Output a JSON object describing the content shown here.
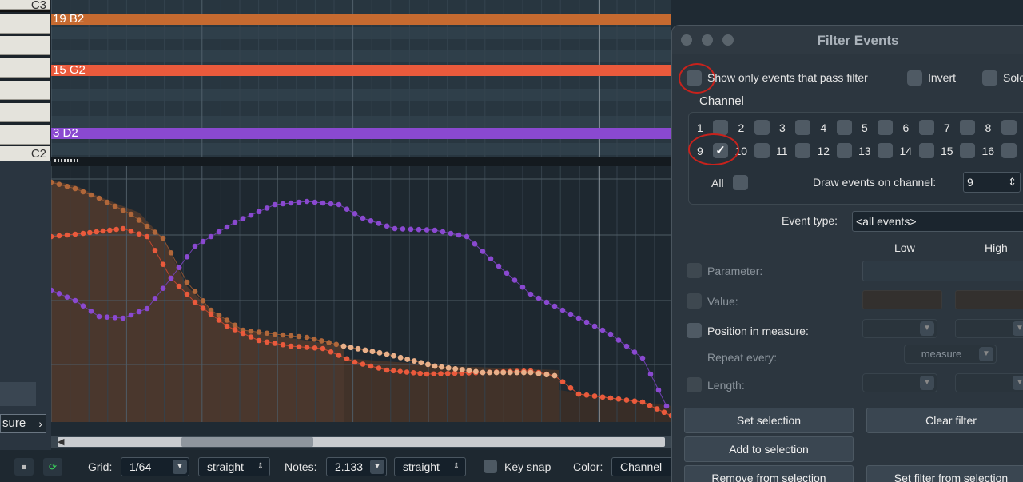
{
  "piano": {
    "top_label": "C3",
    "bottom_label": "C2"
  },
  "notes": [
    {
      "label": "19 B2",
      "color": "#c66a30"
    },
    {
      "label": "15 G2",
      "color": "#ea5a3c"
    },
    {
      "label": "3 D2",
      "color": "#8a49d0"
    }
  ],
  "left_panel": {
    "dropdown_text": "sure",
    "dropdown_arrow": "chevron-right-icon"
  },
  "toolbar": {
    "grid_label": "Grid:",
    "grid_value": "1/64",
    "grid_mode": "straight",
    "notes_label": "Notes:",
    "notes_value": "2.133",
    "notes_mode": "straight",
    "key_snap_label": "Key snap",
    "color_label": "Color:",
    "color_value": "Channel"
  },
  "dialog": {
    "title": "Filter Events",
    "show_only_label": "Show only events that pass filter",
    "invert_label": "Invert",
    "solo_label": "Solo",
    "channel_heading": "Channel",
    "channels_row1": [
      "1",
      "2",
      "3",
      "4",
      "5",
      "6",
      "7",
      "8"
    ],
    "channels_row2": [
      "9",
      "10",
      "11",
      "12",
      "13",
      "14",
      "15",
      "16"
    ],
    "checked_channel": "9",
    "all_label": "All",
    "draw_on_label": "Draw events on channel:",
    "draw_on_value": "9",
    "event_type_label": "Event type:",
    "event_type_value": "<all events>",
    "low_label": "Low",
    "high_label": "High",
    "parameter_label": "Parameter:",
    "value_label": "Value:",
    "position_label": "Position in measure:",
    "repeat_label": "Repeat every:",
    "repeat_value": "measure",
    "length_label": "Length:",
    "buttons": {
      "set_selection": "Set selection",
      "clear_filter": "Clear filter",
      "add_to_selection": "Add to selection",
      "remove_from_selection": "Remove from selection",
      "set_filter_from_selection": "Set filter from selection"
    }
  },
  "colors": {
    "accent_red": "#c8221c",
    "series_purple": "#8a49d0",
    "series_orange": "#ea5a3c",
    "series_brown": "#c66a30"
  }
}
